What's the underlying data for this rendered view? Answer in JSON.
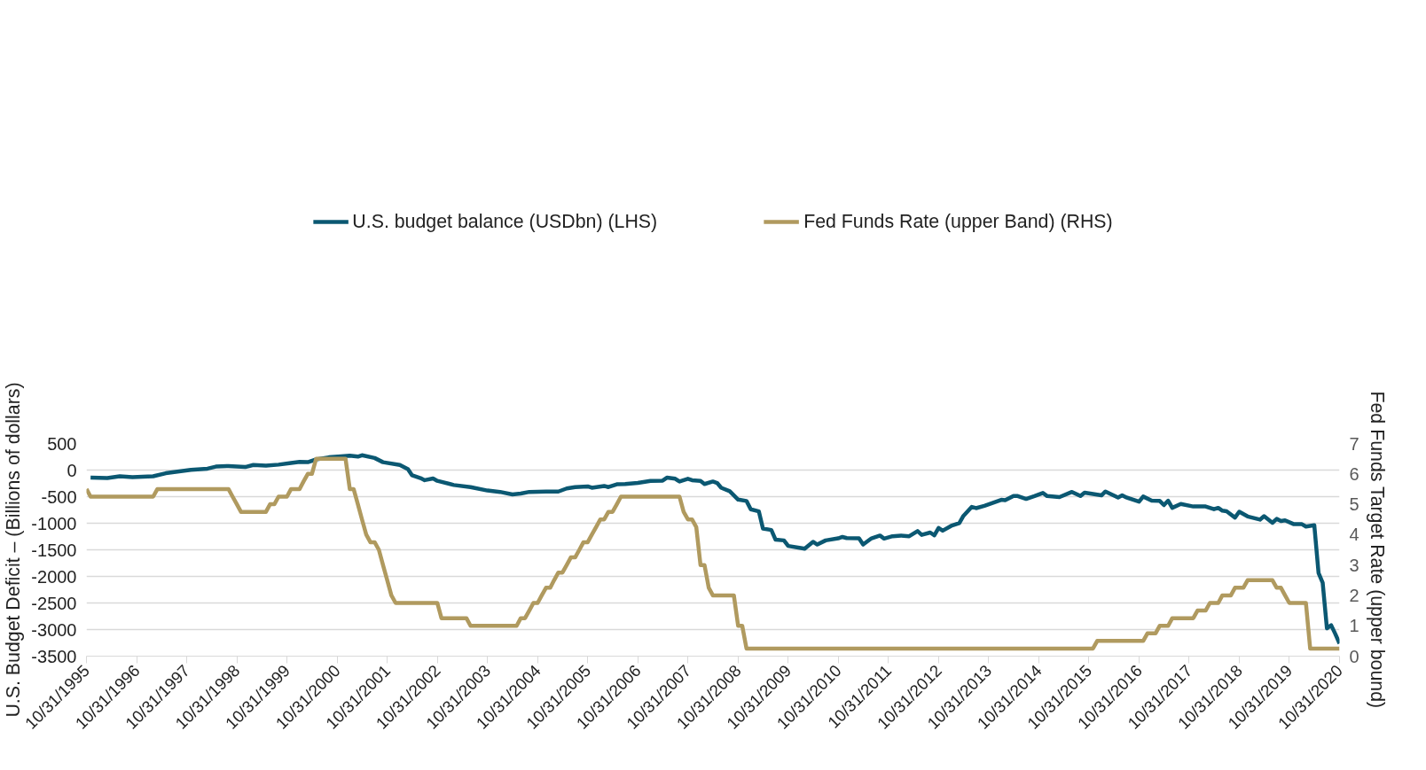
{
  "chart_data": {
    "type": "line",
    "xlim": [
      "1995-10-31",
      "2020-10-31"
    ],
    "xticks": [
      {
        "value": "1995-10-31",
        "label": "10/31/1995"
      },
      {
        "value": "1996-10-31",
        "label": "10/31/1996"
      },
      {
        "value": "1997-10-31",
        "label": "10/31/1997"
      },
      {
        "value": "1998-10-31",
        "label": "10/31/1998"
      },
      {
        "value": "1999-10-31",
        "label": "10/31/1999"
      },
      {
        "value": "2000-10-31",
        "label": "10/31/2000"
      },
      {
        "value": "2001-10-31",
        "label": "10/31/2001"
      },
      {
        "value": "2002-10-31",
        "label": "10/31/2002"
      },
      {
        "value": "2003-10-31",
        "label": "10/31/2003"
      },
      {
        "value": "2004-10-31",
        "label": "10/31/2004"
      },
      {
        "value": "2005-10-31",
        "label": "10/31/2005"
      },
      {
        "value": "2006-10-31",
        "label": "10/31/2006"
      },
      {
        "value": "2007-10-31",
        "label": "10/31/2007"
      },
      {
        "value": "2008-10-31",
        "label": "10/31/2008"
      },
      {
        "value": "2009-10-31",
        "label": "10/31/2009"
      },
      {
        "value": "2010-10-31",
        "label": "10/31/2010"
      },
      {
        "value": "2011-10-31",
        "label": "10/31/2011"
      },
      {
        "value": "2012-10-31",
        "label": "10/31/2012"
      },
      {
        "value": "2013-10-31",
        "label": "10/31/2013"
      },
      {
        "value": "2014-10-31",
        "label": "10/31/2014"
      },
      {
        "value": "2015-10-31",
        "label": "10/31/2015"
      },
      {
        "value": "2016-10-31",
        "label": "10/31/2016"
      },
      {
        "value": "2017-10-31",
        "label": "10/31/2017"
      },
      {
        "value": "2018-10-31",
        "label": "10/31/2018"
      },
      {
        "value": "2019-10-31",
        "label": "10/31/2019"
      },
      {
        "value": "2020-10-31",
        "label": "10/31/2020"
      }
    ],
    "ylim": [
      -3500,
      500
    ],
    "yticks": [
      -3500,
      -3000,
      -2500,
      -2000,
      -1500,
      -1000,
      -500,
      0,
      500
    ],
    "y2lim": [
      0,
      7
    ],
    "y2ticks": [
      0,
      1,
      2,
      3,
      4,
      5,
      6,
      7
    ],
    "ylabel": "U.S. Budget Deficit – (Billions of dollars)",
    "y2label": "Fed Funds Target Rate (upper bound)",
    "grid": "y",
    "legend": "top",
    "line_style": "solid",
    "series": [
      {
        "name": "U.S. budget balance (USDbn) (LHS)",
        "color": "#0b5872",
        "x": [
          "1995-11",
          "1996-03",
          "1996-06",
          "1996-09",
          "1997-02",
          "1997-05",
          "1997-11",
          "1998-03",
          "1998-05",
          "1998-08",
          "1998-12",
          "1999-02",
          "1999-05",
          "1999-08",
          "1999-11",
          "2000-01",
          "2000-03",
          "2000-05",
          "2000-08",
          "2000-11",
          "2001-01",
          "2001-03",
          "2001-04",
          "2001-07",
          "2001-09",
          "2002-01",
          "2002-03",
          "2002-04",
          "2002-06",
          "2002-07",
          "2002-09",
          "2002-10",
          "2003-02",
          "2003-06",
          "2003-10",
          "2004-01",
          "2004-04",
          "2004-06",
          "2004-08",
          "2004-12",
          "2005-03",
          "2005-05",
          "2005-07",
          "2005-10",
          "2005-11",
          "2006-02",
          "2006-03",
          "2006-05",
          "2006-07",
          "2006-10",
          "2007-01",
          "2007-04",
          "2007-05",
          "2007-07",
          "2007-08",
          "2007-10",
          "2007-11",
          "2008-01",
          "2008-02",
          "2008-04",
          "2008-05",
          "2008-06",
          "2008-08",
          "2008-10",
          "2008-12",
          "2009-01",
          "2009-03",
          "2009-04",
          "2009-06",
          "2009-07",
          "2009-09",
          "2009-10",
          "2010-01",
          "2010-02",
          "2010-04",
          "2010-05",
          "2010-07",
          "2010-10",
          "2010-11",
          "2010-12",
          "2011-03",
          "2011-04",
          "2011-06",
          "2011-08",
          "2011-09",
          "2011-11",
          "2012-01",
          "2012-03",
          "2012-05",
          "2012-06",
          "2012-08",
          "2012-09",
          "2012-10",
          "2012-11",
          "2013-01",
          "2013-03",
          "2013-04",
          "2013-06",
          "2013-07",
          "2013-09",
          "2014-01",
          "2014-02",
          "2014-04",
          "2014-05",
          "2014-07",
          "2014-09",
          "2014-11",
          "2014-12",
          "2015-03",
          "2015-06",
          "2015-08",
          "2015-09",
          "2016-01",
          "2016-02",
          "2016-05",
          "2016-06",
          "2016-07",
          "2016-10",
          "2016-11",
          "2017-01",
          "2017-03",
          "2017-04",
          "2017-05",
          "2017-06",
          "2017-08",
          "2017-11",
          "2018-02",
          "2018-04",
          "2018-05",
          "2018-06",
          "2018-07",
          "2018-09",
          "2018-10",
          "2018-12",
          "2019-03",
          "2019-04",
          "2019-06",
          "2019-07",
          "2019-08",
          "2019-09",
          "2019-11",
          "2020-01",
          "2020-02",
          "2020-04",
          "2020-05",
          "2020-06",
          "2020-07",
          "2020-08",
          "2020-09",
          "2020-10"
        ],
        "values": [
          -143,
          -151,
          -117,
          -133,
          -117,
          -60,
          5,
          26,
          65,
          76,
          57,
          96,
          83,
          102,
          135,
          154,
          148,
          200,
          240,
          258,
          271,
          253,
          279,
          227,
          148,
          96,
          18,
          -99,
          -151,
          -190,
          -159,
          -203,
          -281,
          -320,
          -385,
          -411,
          -458,
          -443,
          -411,
          -404,
          -404,
          -346,
          -320,
          -307,
          -333,
          -299,
          -320,
          -268,
          -263,
          -242,
          -203,
          -198,
          -143,
          -164,
          -216,
          -164,
          -190,
          -203,
          -263,
          -216,
          -242,
          -333,
          -398,
          -555,
          -581,
          -737,
          -776,
          -1101,
          -1127,
          -1310,
          -1323,
          -1427,
          -1466,
          -1479,
          -1349,
          -1401,
          -1323,
          -1284,
          -1258,
          -1279,
          -1284,
          -1401,
          -1284,
          -1232,
          -1289,
          -1245,
          -1232,
          -1245,
          -1148,
          -1219,
          -1175,
          -1227,
          -1088,
          -1140,
          -1049,
          -997,
          -862,
          -693,
          -716,
          -672,
          -560,
          -568,
          -489,
          -489,
          -542,
          -489,
          -430,
          -489,
          -508,
          -411,
          -489,
          -424,
          -476,
          -404,
          -516,
          -476,
          -516,
          -594,
          -498,
          -576,
          -581,
          -659,
          -576,
          -711,
          -638,
          -685,
          -685,
          -737,
          -711,
          -763,
          -776,
          -893,
          -784,
          -872,
          -932,
          -867,
          -992,
          -919,
          -958,
          -945,
          -1015,
          -1018,
          -1062,
          -1036,
          -1935,
          -2117,
          -2977,
          -2919,
          -3081,
          -3263
        ]
      },
      {
        "name": "Fed Funds Rate (upper Band) (RHS)",
        "color": "#b09a5f",
        "axis": "y2",
        "x": [
          "1995-10-31",
          "1995-11",
          "1997-02",
          "1997-03",
          "1998-08",
          "1998-09",
          "1998-10",
          "1998-11",
          "1999-05",
          "1999-06",
          "1999-07",
          "1999-08",
          "1999-10",
          "1999-11",
          "2000-01",
          "2000-02",
          "2000-03",
          "2000-04",
          "2000-05",
          "2000-12",
          "2001-01",
          "2001-02",
          "2001-03",
          "2001-04",
          "2001-05",
          "2001-06",
          "2001-07",
          "2001-08",
          "2001-09",
          "2001-10",
          "2001-11",
          "2001-12",
          "2002-10",
          "2002-11",
          "2003-05",
          "2003-06",
          "2004-05",
          "2004-06",
          "2004-07",
          "2004-08",
          "2004-09",
          "2004-10",
          "2004-11",
          "2004-12",
          "2005-01",
          "2005-02",
          "2005-03",
          "2005-04",
          "2005-05",
          "2005-06",
          "2005-07",
          "2005-08",
          "2005-09",
          "2005-10",
          "2005-11",
          "2005-12",
          "2006-01",
          "2006-02",
          "2006-03",
          "2006-04",
          "2006-05",
          "2006-06",
          "2007-08",
          "2007-09",
          "2007-10",
          "2007-11",
          "2007-12",
          "2008-01",
          "2008-02",
          "2008-03",
          "2008-04",
          "2008-09",
          "2008-10",
          "2008-11",
          "2008-12",
          "2015-11",
          "2015-12",
          "2016-11",
          "2016-12",
          "2017-02",
          "2017-03",
          "2017-05",
          "2017-06",
          "2017-11",
          "2017-12",
          "2018-02",
          "2018-03",
          "2018-05",
          "2018-06",
          "2018-08",
          "2018-09",
          "2018-11",
          "2018-12",
          "2019-06",
          "2019-07",
          "2019-08",
          "2019-09",
          "2019-10",
          "2020-02",
          "2020-03",
          "2020-10"
        ],
        "values": [
          5.5,
          5.25,
          5.25,
          5.5,
          5.5,
          5.25,
          5.0,
          4.75,
          4.75,
          5.0,
          5.0,
          5.25,
          5.25,
          5.5,
          5.5,
          5.75,
          6.0,
          6.0,
          6.5,
          6.5,
          5.5,
          5.5,
          5.0,
          4.5,
          4.0,
          3.75,
          3.75,
          3.5,
          3.0,
          2.5,
          2.0,
          1.75,
          1.75,
          1.25,
          1.25,
          1.0,
          1.0,
          1.25,
          1.25,
          1.5,
          1.75,
          1.75,
          2.0,
          2.25,
          2.25,
          2.5,
          2.75,
          2.75,
          3.0,
          3.25,
          3.25,
          3.5,
          3.75,
          3.75,
          4.0,
          4.25,
          4.5,
          4.5,
          4.75,
          4.75,
          5.0,
          5.25,
          5.25,
          4.75,
          4.5,
          4.5,
          4.25,
          3.0,
          3.0,
          2.25,
          2.0,
          2.0,
          1.0,
          1.0,
          0.25,
          0.25,
          0.5,
          0.5,
          0.75,
          0.75,
          1.0,
          1.0,
          1.25,
          1.25,
          1.5,
          1.5,
          1.75,
          1.75,
          2.0,
          2.0,
          2.25,
          2.25,
          2.5,
          2.5,
          2.25,
          2.25,
          2.0,
          1.75,
          1.75,
          0.25,
          0.25
        ]
      }
    ]
  }
}
